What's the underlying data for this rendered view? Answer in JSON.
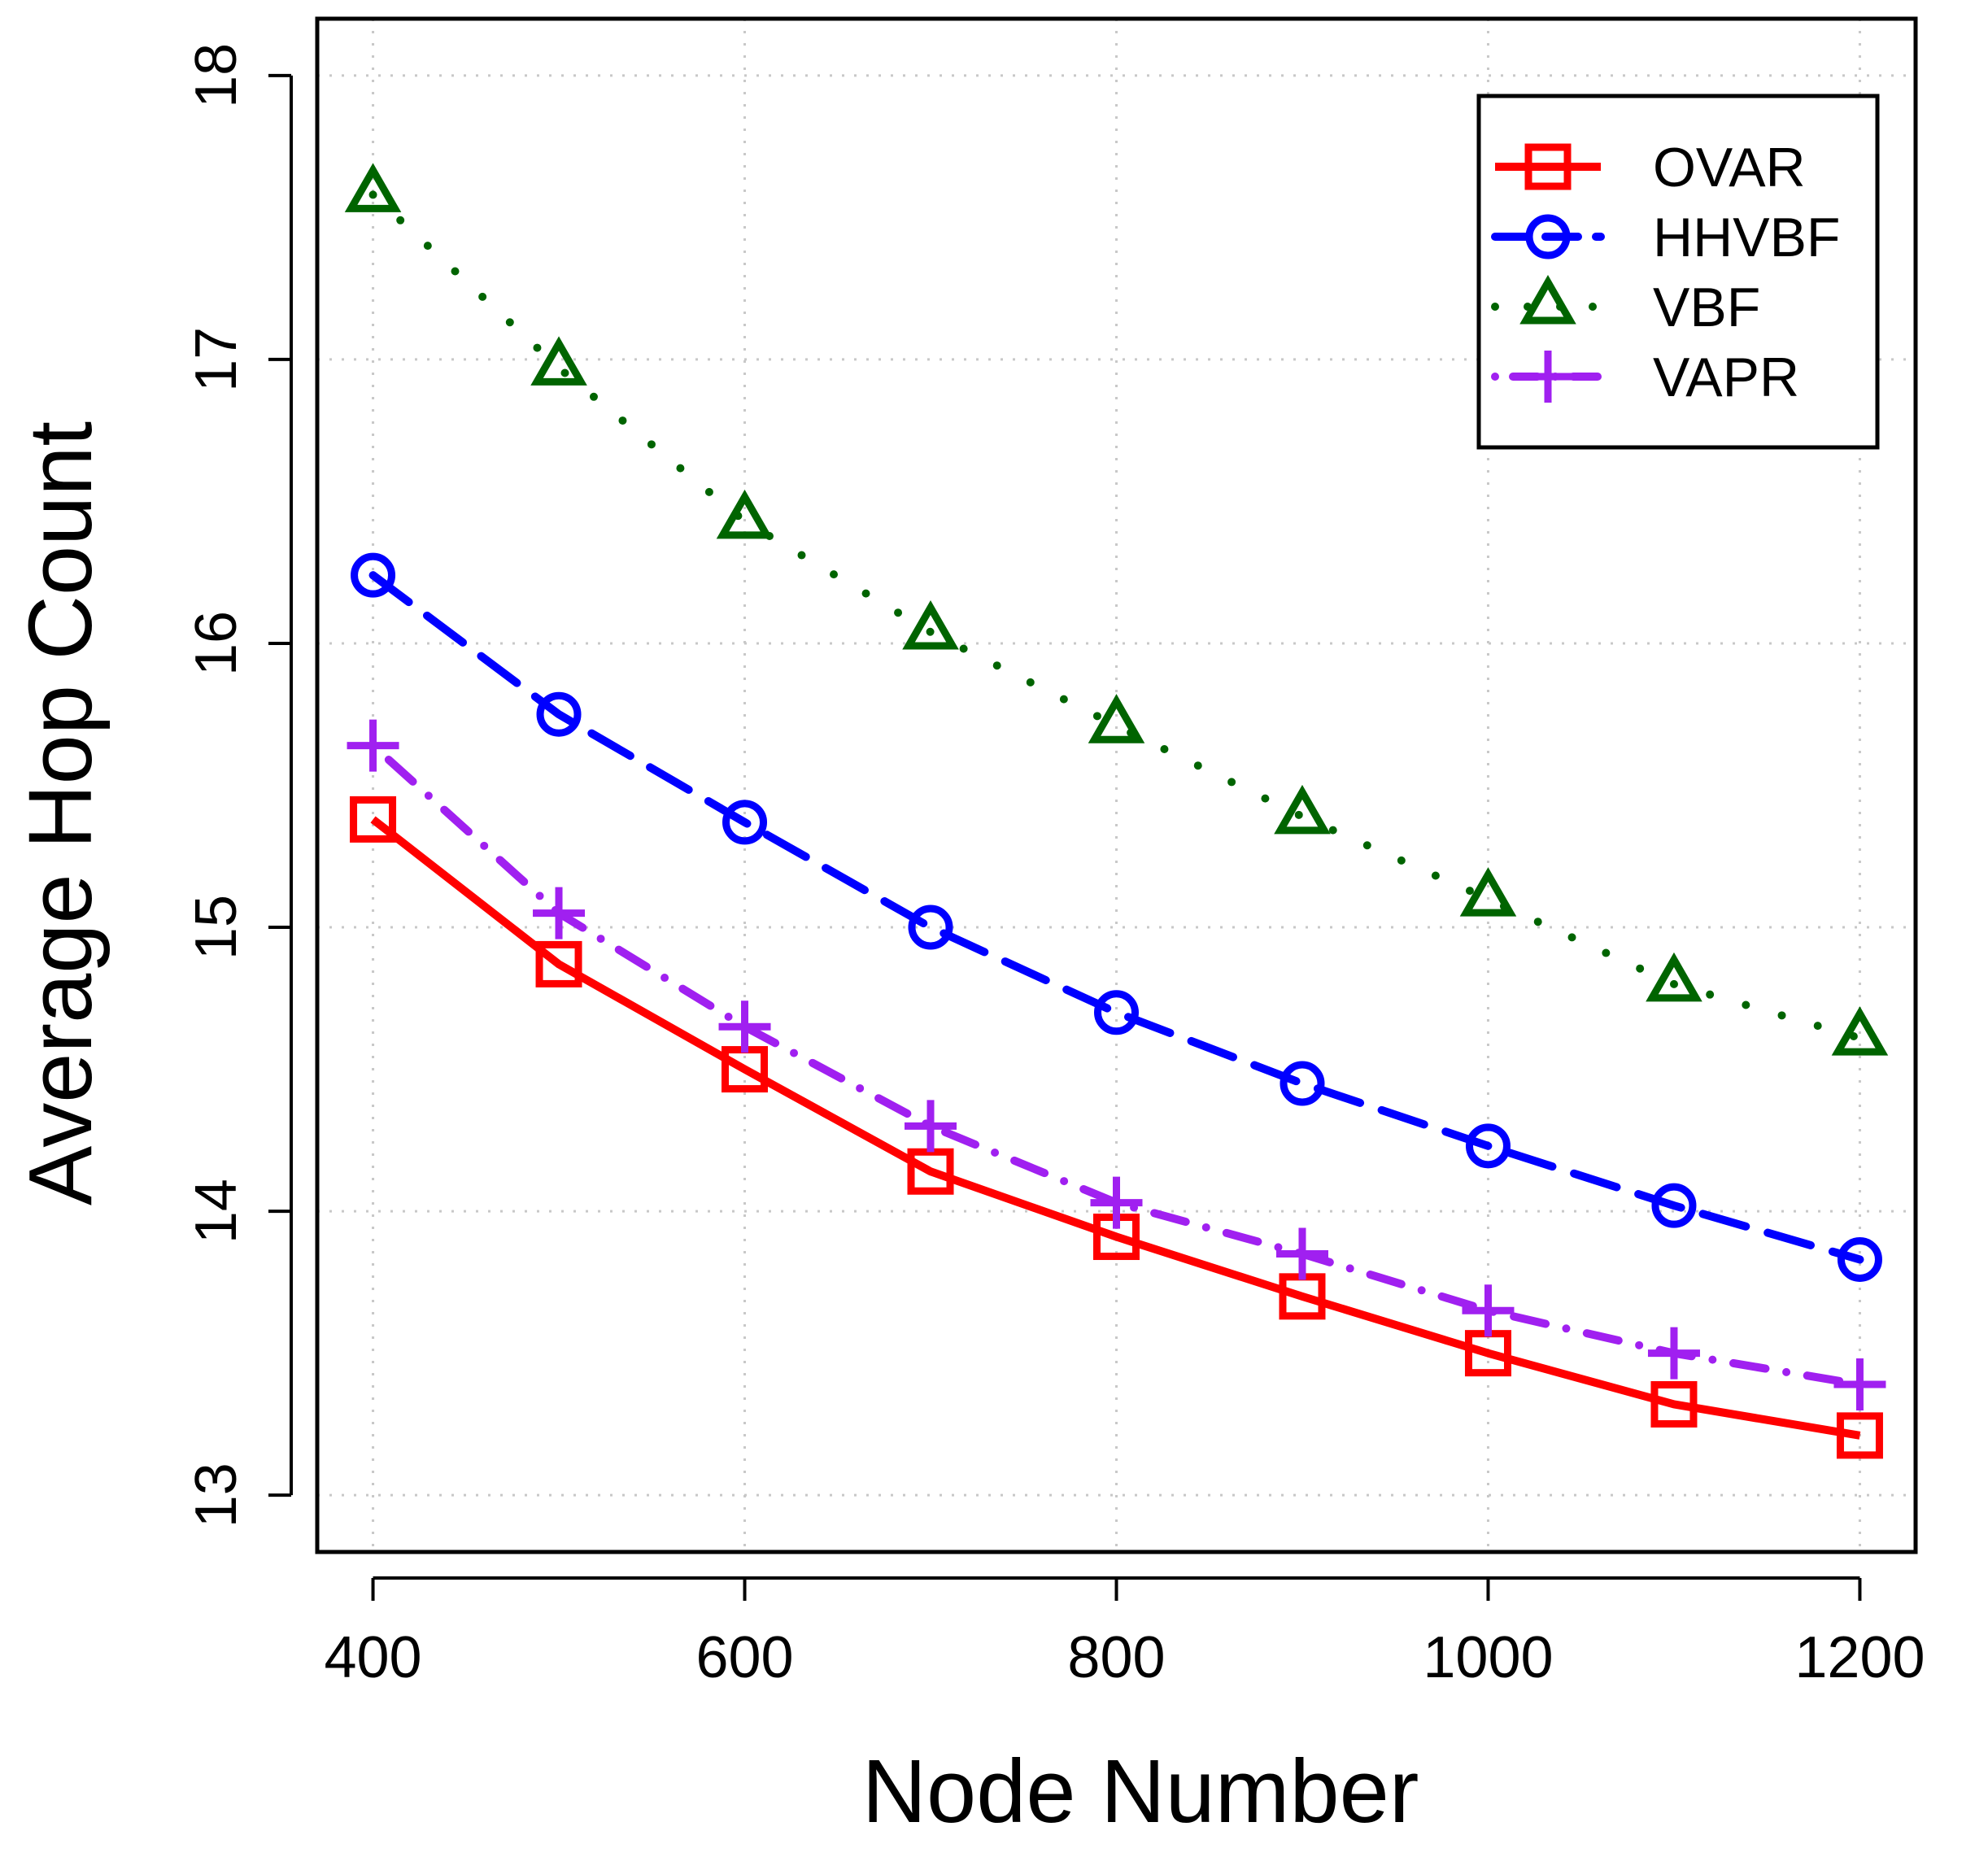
{
  "chart_data": {
    "type": "line",
    "title": "",
    "xlabel": "Node Number",
    "ylabel": "Average Hop Count",
    "x": [
      400,
      500,
      600,
      700,
      800,
      900,
      1000,
      1100,
      1200
    ],
    "xticks": [
      "400",
      "600",
      "800",
      "1000",
      "1200"
    ],
    "yticks": [
      "13",
      "14",
      "15",
      "16",
      "17",
      "18"
    ],
    "xlim": [
      370,
      1230
    ],
    "ylim": [
      12.8,
      18.2
    ],
    "grid": true,
    "legend_position": "top-right",
    "series": [
      {
        "name": "OVAR",
        "color": "#ff0000",
        "line_style": "solid",
        "marker": "square",
        "values": [
          15.38,
          14.87,
          14.5,
          14.14,
          13.91,
          13.7,
          13.5,
          13.32,
          13.21
        ]
      },
      {
        "name": "HHVBF",
        "color": "#0000ff",
        "line_style": "dashed",
        "marker": "circle",
        "values": [
          16.24,
          15.75,
          15.37,
          15.0,
          14.7,
          14.45,
          14.23,
          14.02,
          13.83
        ]
      },
      {
        "name": "VBF",
        "color": "#006400",
        "line_style": "dotted",
        "marker": "triangle",
        "values": [
          17.58,
          16.97,
          16.43,
          16.04,
          15.71,
          15.39,
          15.1,
          14.8,
          14.61
        ]
      },
      {
        "name": "VAPR",
        "color": "#a020f0",
        "line_style": "dashdot",
        "marker": "plus",
        "values": [
          15.64,
          15.05,
          14.65,
          14.3,
          14.03,
          13.85,
          13.65,
          13.5,
          13.39
        ]
      }
    ]
  }
}
